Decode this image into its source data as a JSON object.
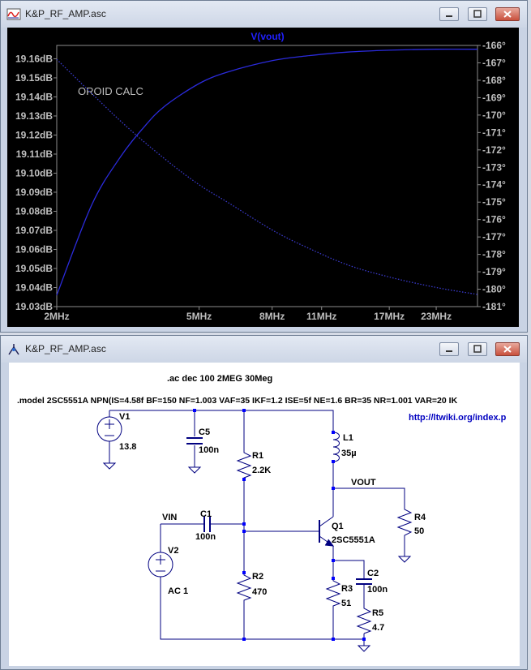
{
  "plot_window": {
    "title": "K&P_RF_AMP.asc",
    "trace_label": "V(vout)",
    "annotation": "OROID CALC"
  },
  "chart_data": {
    "type": "line",
    "title": "V(vout)",
    "x_ticks": [
      "2MHz",
      "5MHz",
      "8MHz",
      "11MHz",
      "17MHz",
      "23MHz"
    ],
    "x_tick_values": [
      2,
      5,
      8,
      11,
      17,
      23
    ],
    "xlim": [
      2,
      30
    ],
    "x_scale": "log",
    "y_left_ticks": [
      "19.16dB",
      "19.15dB",
      "19.14dB",
      "19.13dB",
      "19.12dB",
      "19.11dB",
      "19.10dB",
      "19.09dB",
      "19.08dB",
      "19.07dB",
      "19.06dB",
      "19.05dB",
      "19.04dB",
      "19.03dB"
    ],
    "y_left_lim": [
      19.03,
      19.167
    ],
    "y_right_ticks": [
      "-166°",
      "-167°",
      "-168°",
      "-169°",
      "-170°",
      "-171°",
      "-172°",
      "-173°",
      "-174°",
      "-175°",
      "-176°",
      "-177°",
      "-178°",
      "-179°",
      "-180°",
      "-181°"
    ],
    "y_right_lim": [
      -181,
      -166
    ],
    "grid": false,
    "series": [
      {
        "name": "magnitude",
        "axis": "left",
        "style": "solid",
        "x": [
          2,
          2.5,
          3,
          3.5,
          4,
          5,
          6,
          8,
          10,
          13,
          17,
          23,
          30
        ],
        "y": [
          19.036,
          19.083,
          19.108,
          19.124,
          19.135,
          19.147,
          19.153,
          19.159,
          19.1615,
          19.1635,
          19.1645,
          19.165,
          19.165
        ]
      },
      {
        "name": "phase",
        "axis": "right",
        "style": "dotted",
        "x": [
          2,
          3,
          4,
          5,
          6,
          8,
          10,
          13,
          17,
          23,
          30
        ],
        "y": [
          -166.8,
          -170.3,
          -172.5,
          -174,
          -175,
          -176.6,
          -177.6,
          -178.6,
          -179.3,
          -179.9,
          -180.3
        ]
      }
    ],
    "colors": {
      "magnitude": "#2b2bdc",
      "phase": "#3a3acc",
      "axis_text": "#bfbfbf",
      "title": "#2020ff"
    }
  },
  "schematic_window": {
    "title": "K&P_RF_AMP.asc",
    "directive_ac": ".ac dec 100 2MEG 30Meg",
    "directive_model": ".model 2SC5551A NPN(IS=4.58f BF=150 NF=1.003 VAF=35 IKF=1.2 ISE=5f NE=1.6 BR=35 NR=1.001 VAR=20 IK",
    "link": "http://ltwiki.org/index.p",
    "components": {
      "v1": {
        "name": "V1",
        "value": "13.8"
      },
      "v2": {
        "name": "V2",
        "value": "AC 1"
      },
      "c5": {
        "name": "C5",
        "value": "100n"
      },
      "c1": {
        "name": "C1",
        "value": "100n"
      },
      "c2": {
        "name": "C2",
        "value": "100n"
      },
      "r1": {
        "name": "R1",
        "value": "2.2K"
      },
      "r2": {
        "name": "R2",
        "value": "470"
      },
      "r3": {
        "name": "R3",
        "value": "51"
      },
      "r4": {
        "name": "R4",
        "value": "50"
      },
      "r5": {
        "name": "R5",
        "value": "4.7"
      },
      "l1": {
        "name": "L1",
        "value": "35µ"
      },
      "q1": {
        "name": "Q1",
        "value": "2SC5551A"
      }
    },
    "nets": {
      "vin": "VIN",
      "vout": "VOUT"
    }
  },
  "colors": {
    "plot_bg": "#000000",
    "schematic_bg": "#ffffff",
    "wire": "#000080",
    "node": "#0000ff",
    "link": "#0000c0"
  }
}
